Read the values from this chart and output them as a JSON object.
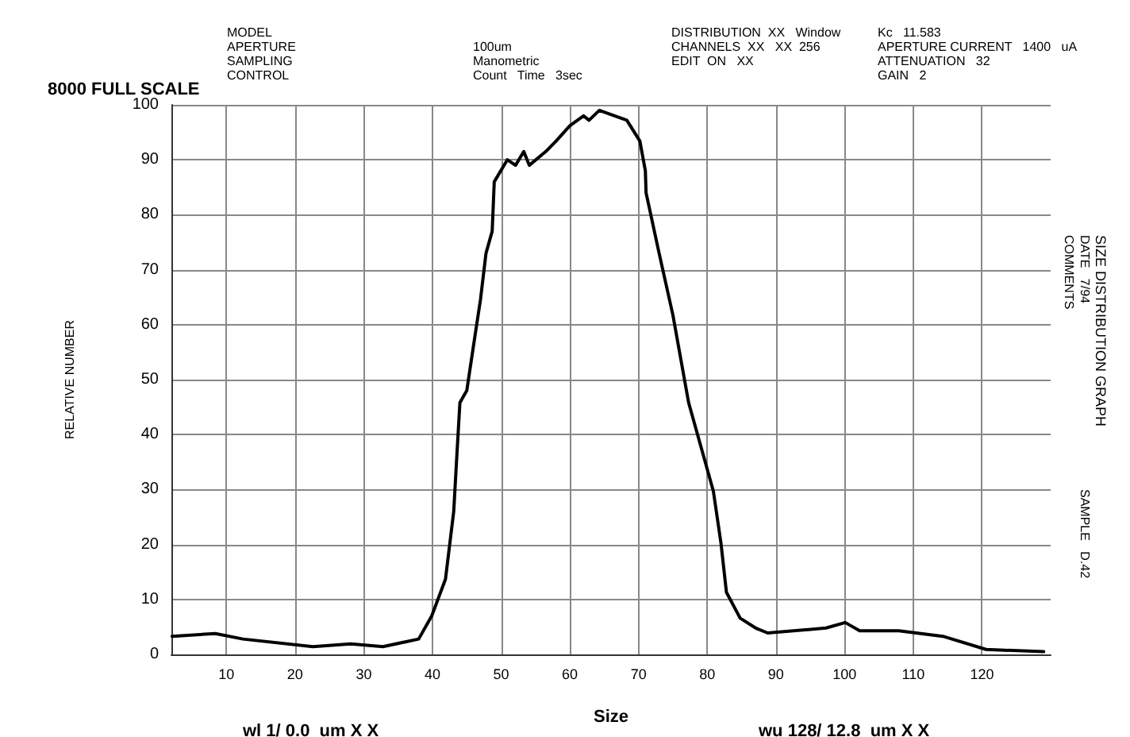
{
  "chart_data": {
    "type": "line",
    "title": "SIZE DISTRIBUTION GRAPH",
    "xlabel": "Size",
    "ylabel": "RELATIVE NUMBER",
    "annotations": [
      "8000 FULL SCALE",
      "MODEL\nAPERTURE\nSAMPLING\nCONTROL",
      "100um\nManometric\nCount   Time   3sec",
      "DISTRIBUTION  XX   Window\nCHANNELS  XX   XX  256\nEDIT  ON   XX",
      "Kc   11.583",
      "APERTURE CURRENT   1400   uA\nATTENUATION   32\nGAIN   2",
      "wl 1/ 0.0  um X X",
      "wu 128/ 12.8  um X X",
      "DATE   7/94",
      "COMMENTS",
      "SAMPLE   D.42"
    ],
    "x": [
      2.1,
      8.4,
      12.4,
      22.6,
      28.1,
      32.8,
      38,
      39.9,
      41.9,
      43.1,
      43.5,
      44,
      45,
      46.2,
      47,
      47.8,
      48.7,
      49,
      50.9,
      52.1,
      53.3,
      54.1,
      56.5,
      58,
      60,
      62,
      62.8,
      64.3,
      68.3,
      70.2,
      71,
      71.1,
      73,
      75,
      77.3,
      80.9,
      82,
      82.8,
      84.8,
      87.2,
      88.8,
      97.3,
      100.1,
      102.2,
      107.9,
      114.3,
      120.6,
      129
    ],
    "values": [
      3.3,
      3.8,
      2.8,
      1.4,
      1.9,
      1.4,
      2.8,
      7,
      13.7,
      26,
      35,
      45.8,
      48,
      58,
      64.6,
      73,
      77,
      86,
      90,
      89,
      91.5,
      89,
      91.5,
      93.4,
      96.2,
      98,
      97.2,
      99,
      97.2,
      93.4,
      88,
      84,
      73,
      61.8,
      45.8,
      29.7,
      20.3,
      11.3,
      6.6,
      4.7,
      3.9,
      4.8,
      5.8,
      4.3,
      4.3,
      3.3,
      0.9,
      0.5
    ],
    "color": "#000000",
    "xlim": [
      2,
      130
    ],
    "ylim": [
      0,
      100
    ],
    "xticks": [
      10,
      20,
      30,
      40,
      50,
      60,
      70,
      80,
      90,
      100,
      110,
      120
    ],
    "yticks": [
      0,
      10,
      20,
      30,
      40,
      50,
      60,
      70,
      80,
      90,
      100
    ],
    "grid": true,
    "marker": "none",
    "line_style": "solid"
  }
}
